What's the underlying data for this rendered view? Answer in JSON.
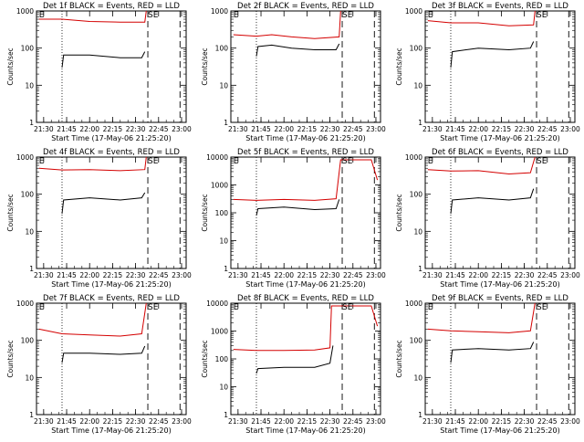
{
  "chart_data": [
    {
      "type": "line",
      "id": "1f",
      "title": "Det 1f BLACK = Events, RED = LLD",
      "xlabel": "Start Time (17-May-06 21:25:20)",
      "ylabel": "Counts/sec",
      "xlim": [
        "21:25:20",
        "23:03:00"
      ],
      "ylim": [
        1,
        1000
      ],
      "log_y": true,
      "x_ticks": [
        "21:30",
        "21:45",
        "22:00",
        "22:15",
        "22:30",
        "22:45",
        "23:00"
      ],
      "y_ticks": [
        "1",
        "10",
        "100",
        "1000"
      ],
      "markers": {
        "dotted": [
          "21:42"
        ],
        "dashed": [
          "22:38",
          "22:59"
        ]
      },
      "flags": [
        {
          "label": "E",
          "x": "21:27"
        },
        {
          "label": "SE",
          "x": "22:38"
        }
      ],
      "series": [
        {
          "color": "#d40000",
          "points": [
            [
              "21:27",
              600
            ],
            [
              "21:42",
              600
            ],
            [
              "22:00",
              520
            ],
            [
              "22:20",
              500
            ],
            [
              "22:36",
              500
            ],
            [
              "22:37",
              1000
            ]
          ]
        },
        {
          "color": "#000000",
          "points": [
            [
              "21:42",
              30
            ],
            [
              "21:43",
              65
            ],
            [
              "22:00",
              65
            ],
            [
              "22:20",
              55
            ],
            [
              "22:34",
              55
            ],
            [
              "22:36",
              80
            ]
          ]
        }
      ]
    },
    {
      "type": "line",
      "id": "2f",
      "title": "Det 2f BLACK = Events, RED = LLD",
      "xlabel": "Start Time (17-May-06 21:25:20)",
      "ylabel": "Counts/sec",
      "xlim": [
        "21:25:20",
        "23:03:00"
      ],
      "ylim": [
        1,
        1000
      ],
      "log_y": true,
      "x_ticks": [
        "21:30",
        "21:45",
        "22:00",
        "22:15",
        "22:30",
        "22:45",
        "23:00"
      ],
      "y_ticks": [
        "1",
        "10",
        "100",
        "1000"
      ],
      "markers": {
        "dotted": [
          "21:42"
        ],
        "dashed": [
          "22:38",
          "22:59"
        ]
      },
      "flags": [
        {
          "label": "E",
          "x": "21:27"
        },
        {
          "label": "SE",
          "x": "22:38"
        }
      ],
      "series": [
        {
          "color": "#d40000",
          "points": [
            [
              "21:27",
              230
            ],
            [
              "21:42",
              210
            ],
            [
              "21:52",
              230
            ],
            [
              "22:05",
              200
            ],
            [
              "22:20",
              180
            ],
            [
              "22:36",
              200
            ],
            [
              "22:37",
              1000
            ]
          ]
        },
        {
          "color": "#000000",
          "points": [
            [
              "21:42",
              60
            ],
            [
              "21:43",
              110
            ],
            [
              "21:52",
              120
            ],
            [
              "22:05",
              100
            ],
            [
              "22:20",
              90
            ],
            [
              "22:34",
              90
            ],
            [
              "22:36",
              130
            ]
          ]
        }
      ]
    },
    {
      "type": "line",
      "id": "3f",
      "title": "Det 3f BLACK = Events, RED = LLD",
      "xlabel": "Start Time (17-May-06 21:25:20)",
      "ylabel": "Counts/sec",
      "xlim": [
        "21:25:20",
        "23:03:00"
      ],
      "ylim": [
        1,
        1000
      ],
      "log_y": true,
      "x_ticks": [
        "21:30",
        "21:45",
        "22:00",
        "22:15",
        "22:30",
        "22:45",
        "23:00"
      ],
      "y_ticks": [
        "1",
        "10",
        "100",
        "1000"
      ],
      "markers": {
        "dotted": [
          "21:42"
        ],
        "dashed": [
          "22:38",
          "22:59"
        ]
      },
      "flags": [
        {
          "label": "E",
          "x": "21:27"
        },
        {
          "label": "SE",
          "x": "22:38"
        }
      ],
      "series": [
        {
          "color": "#d40000",
          "points": [
            [
              "21:27",
              550
            ],
            [
              "21:42",
              480
            ],
            [
              "22:00",
              480
            ],
            [
              "22:20",
              400
            ],
            [
              "22:36",
              420
            ],
            [
              "22:37",
              1000
            ]
          ]
        },
        {
          "color": "#000000",
          "points": [
            [
              "21:42",
              30
            ],
            [
              "21:43",
              80
            ],
            [
              "22:00",
              100
            ],
            [
              "22:20",
              90
            ],
            [
              "22:34",
              100
            ],
            [
              "22:36",
              150
            ]
          ]
        }
      ]
    },
    {
      "type": "line",
      "id": "4f",
      "title": "Det 4f BLACK = Events, RED = LLD",
      "xlabel": "Start Time (17-May-06 21:25:20)",
      "ylabel": "Counts/sec",
      "xlim": [
        "21:25:20",
        "23:03:00"
      ],
      "ylim": [
        1,
        1000
      ],
      "log_y": true,
      "x_ticks": [
        "21:30",
        "21:45",
        "22:00",
        "22:15",
        "22:30",
        "22:45",
        "23:00"
      ],
      "y_ticks": [
        "1",
        "10",
        "100",
        "1000"
      ],
      "markers": {
        "dotted": [
          "21:42"
        ],
        "dashed": [
          "22:38",
          "22:59"
        ]
      },
      "flags": [
        {
          "label": "E",
          "x": "21:27"
        },
        {
          "label": "SE",
          "x": "22:38"
        }
      ],
      "series": [
        {
          "color": "#d40000",
          "points": [
            [
              "21:27",
              500
            ],
            [
              "21:42",
              450
            ],
            [
              "22:00",
              460
            ],
            [
              "22:20",
              430
            ],
            [
              "22:36",
              460
            ],
            [
              "22:37",
              1000
            ]
          ]
        },
        {
          "color": "#000000",
          "points": [
            [
              "21:42",
              30
            ],
            [
              "21:43",
              70
            ],
            [
              "22:00",
              80
            ],
            [
              "22:20",
              70
            ],
            [
              "22:34",
              80
            ],
            [
              "22:36",
              110
            ]
          ]
        }
      ]
    },
    {
      "type": "line",
      "id": "5f",
      "title": "Det 5f BLACK = Events, RED = LLD",
      "xlabel": "Start Time (17-May-06 21:25:20)",
      "ylabel": "Counts/sec",
      "xlim": [
        "21:25:20",
        "23:03:00"
      ],
      "ylim": [
        1,
        10000
      ],
      "log_y": true,
      "x_ticks": [
        "21:30",
        "21:45",
        "22:00",
        "22:15",
        "22:30",
        "22:45",
        "23:00"
      ],
      "y_ticks": [
        "1",
        "10",
        "100",
        "1000",
        "10000"
      ],
      "markers": {
        "dotted": [
          "21:42"
        ],
        "dashed": [
          "22:38",
          "22:59"
        ]
      },
      "flags": [
        {
          "label": "E",
          "x": "21:27"
        },
        {
          "label": "SE",
          "x": "22:38"
        }
      ],
      "series": [
        {
          "color": "#d40000",
          "points": [
            [
              "21:27",
              300
            ],
            [
              "21:42",
              280
            ],
            [
              "22:00",
              300
            ],
            [
              "22:20",
              280
            ],
            [
              "22:34",
              320
            ],
            [
              "22:37",
              8000
            ],
            [
              "22:57",
              8000
            ],
            [
              "23:01",
              1500
            ]
          ]
        },
        {
          "color": "#000000",
          "points": [
            [
              "21:42",
              80
            ],
            [
              "21:43",
              140
            ],
            [
              "22:00",
              160
            ],
            [
              "22:20",
              130
            ],
            [
              "22:34",
              140
            ],
            [
              "22:36",
              300
            ]
          ]
        }
      ]
    },
    {
      "type": "line",
      "id": "6f",
      "title": "Det 6f BLACK = Events, RED = LLD",
      "xlabel": "Start Time (17-May-06 21:25:20)",
      "ylabel": "Counts/sec",
      "xlim": [
        "21:25:20",
        "23:03:00"
      ],
      "ylim": [
        1,
        1000
      ],
      "log_y": true,
      "x_ticks": [
        "21:30",
        "21:45",
        "22:00",
        "22:15",
        "22:30",
        "22:45",
        "23:00"
      ],
      "y_ticks": [
        "1",
        "10",
        "100",
        "1000"
      ],
      "markers": {
        "dotted": [
          "21:42"
        ],
        "dashed": [
          "22:38",
          "22:59"
        ]
      },
      "flags": [
        {
          "label": "E",
          "x": "21:27"
        },
        {
          "label": "SE",
          "x": "22:38"
        }
      ],
      "series": [
        {
          "color": "#d40000",
          "points": [
            [
              "21:27",
              460
            ],
            [
              "21:42",
              420
            ],
            [
              "22:00",
              430
            ],
            [
              "22:20",
              350
            ],
            [
              "22:34",
              380
            ],
            [
              "22:37",
              1000
            ]
          ]
        },
        {
          "color": "#000000",
          "points": [
            [
              "21:42",
              30
            ],
            [
              "21:43",
              70
            ],
            [
              "22:00",
              80
            ],
            [
              "22:20",
              70
            ],
            [
              "22:34",
              80
            ],
            [
              "22:36",
              140
            ]
          ]
        }
      ]
    },
    {
      "type": "line",
      "id": "7f",
      "title": "Det 7f BLACK = Events, RED = LLD",
      "xlabel": "Start Time (17-May-06 21:25:20)",
      "ylabel": "Counts/sec",
      "xlim": [
        "21:25:20",
        "23:03:00"
      ],
      "ylim": [
        1,
        1000
      ],
      "log_y": true,
      "x_ticks": [
        "21:30",
        "21:45",
        "22:00",
        "22:15",
        "22:30",
        "22:45",
        "23:00"
      ],
      "y_ticks": [
        "1",
        "10",
        "100",
        "1000"
      ],
      "markers": {
        "dotted": [
          "21:42"
        ],
        "dashed": [
          "22:38",
          "22:59"
        ]
      },
      "flags": [
        {
          "label": "E",
          "x": "21:27"
        },
        {
          "label": "SE",
          "x": "22:38"
        }
      ],
      "series": [
        {
          "color": "#d40000",
          "points": [
            [
              "21:27",
              200
            ],
            [
              "21:42",
              150
            ],
            [
              "22:00",
              140
            ],
            [
              "22:20",
              130
            ],
            [
              "22:34",
              150
            ],
            [
              "22:37",
              1000
            ]
          ]
        },
        {
          "color": "#000000",
          "points": [
            [
              "21:42",
              25
            ],
            [
              "21:43",
              45
            ],
            [
              "22:00",
              45
            ],
            [
              "22:20",
              42
            ],
            [
              "22:34",
              45
            ],
            [
              "22:36",
              70
            ]
          ]
        }
      ]
    },
    {
      "type": "line",
      "id": "8f",
      "title": "Det 8f BLACK = Events, RED = LLD",
      "xlabel": "Start Time (17-May-06 21:25:20)",
      "ylabel": "Counts/sec",
      "xlim": [
        "21:25:20",
        "23:03:00"
      ],
      "ylim": [
        1,
        10000
      ],
      "log_y": true,
      "x_ticks": [
        "21:30",
        "21:45",
        "22:00",
        "22:15",
        "22:30",
        "22:45",
        "23:00"
      ],
      "y_ticks": [
        "1",
        "10",
        "100",
        "1000",
        "10000"
      ],
      "markers": {
        "dotted": [
          "21:42"
        ],
        "dashed": [
          "22:38",
          "22:59"
        ]
      },
      "flags": [
        {
          "label": "E",
          "x": "21:27"
        },
        {
          "label": "SE",
          "x": "22:38"
        }
      ],
      "series": [
        {
          "color": "#d40000",
          "points": [
            [
              "21:27",
              220
            ],
            [
              "21:42",
              200
            ],
            [
              "22:00",
              200
            ],
            [
              "22:20",
              210
            ],
            [
              "22:30",
              250
            ],
            [
              "22:31",
              8000
            ],
            [
              "22:57",
              8000
            ],
            [
              "23:01",
              1500
            ]
          ]
        },
        {
          "color": "#000000",
          "points": [
            [
              "21:42",
              30
            ],
            [
              "21:43",
              45
            ],
            [
              "22:00",
              50
            ],
            [
              "22:20",
              50
            ],
            [
              "22:30",
              70
            ],
            [
              "22:32",
              300
            ]
          ]
        }
      ]
    },
    {
      "type": "line",
      "id": "9f",
      "title": "Det 9f BLACK = Events, RED = LLD",
      "xlabel": "Start Time (17-May-06 21:25:20)",
      "ylabel": "Counts/sec",
      "xlim": [
        "21:25:20",
        "23:03:00"
      ],
      "ylim": [
        1,
        1000
      ],
      "log_y": true,
      "x_ticks": [
        "21:30",
        "21:45",
        "22:00",
        "22:15",
        "22:30",
        "22:45",
        "23:00"
      ],
      "y_ticks": [
        "1",
        "10",
        "100",
        "1000"
      ],
      "markers": {
        "dotted": [
          "21:42"
        ],
        "dashed": [
          "22:38",
          "22:59"
        ]
      },
      "flags": [
        {
          "label": "E",
          "x": "21:27"
        },
        {
          "label": "SE",
          "x": "22:38"
        }
      ],
      "series": [
        {
          "color": "#d40000",
          "points": [
            [
              "21:27",
              200
            ],
            [
              "21:42",
              180
            ],
            [
              "22:00",
              170
            ],
            [
              "22:20",
              160
            ],
            [
              "22:34",
              180
            ],
            [
              "22:37",
              1000
            ]
          ]
        },
        {
          "color": "#000000",
          "points": [
            [
              "21:42",
              25
            ],
            [
              "21:43",
              55
            ],
            [
              "22:00",
              60
            ],
            [
              "22:20",
              55
            ],
            [
              "22:34",
              60
            ],
            [
              "22:36",
              90
            ]
          ]
        }
      ]
    }
  ]
}
